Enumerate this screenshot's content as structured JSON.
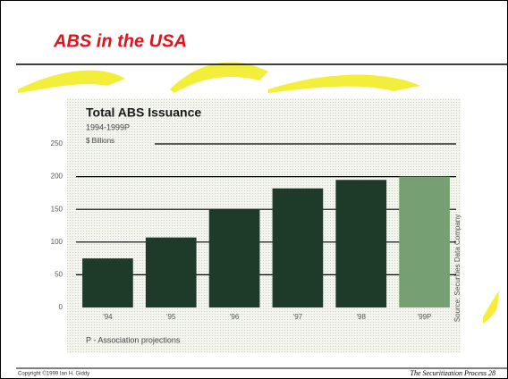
{
  "title": "ABS in the USA",
  "chart_data": {
    "type": "bar",
    "title": "Total ABS Issuance",
    "subtitle": "1994-1999P",
    "y_label": "$ Billions",
    "categories": [
      "'94",
      "'95",
      "'96",
      "'97",
      "'98",
      "'99P"
    ],
    "values": [
      75,
      107,
      150,
      182,
      195,
      200
    ],
    "colors": [
      "#1e3b29",
      "#1e3b29",
      "#1e3b29",
      "#1e3b29",
      "#1e3b29",
      "#76a074"
    ],
    "ylim": [
      0,
      250
    ],
    "yticks": [
      0,
      50,
      100,
      150,
      200,
      250
    ],
    "grid": true,
    "note": "P - Association projections",
    "source": "Source: Securities Data Company"
  },
  "footer": {
    "copyright": "Copyright ©1999 Ian H. Giddy",
    "title": "The Securitization Process",
    "page": "28"
  }
}
